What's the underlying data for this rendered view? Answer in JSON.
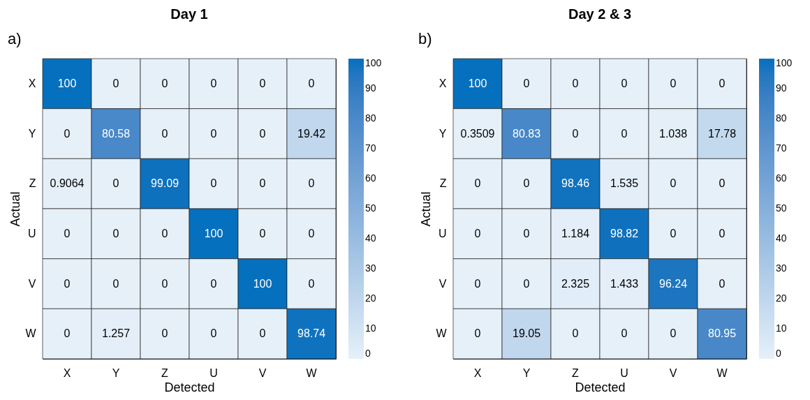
{
  "chart_data": [
    {
      "type": "heatmap",
      "title": "Day 1",
      "xlabel": "Detected",
      "ylabel": "Actual",
      "annotations": [
        "a)"
      ],
      "categories": [
        "X",
        "Y",
        "Z",
        "U",
        "V",
        "W"
      ],
      "y_categories": [
        "X",
        "Y",
        "Z",
        "U",
        "V",
        "W"
      ],
      "cells": [
        [
          100,
          0,
          0,
          0,
          0,
          0
        ],
        [
          0,
          80.58,
          0,
          0,
          0,
          19.42
        ],
        [
          0.9064,
          0,
          99.09,
          0,
          0,
          0
        ],
        [
          0,
          0,
          0,
          100,
          0,
          0
        ],
        [
          0,
          0,
          0,
          0,
          100,
          0
        ],
        [
          0,
          1.257,
          0,
          0,
          0,
          98.74
        ]
      ],
      "data_labels": true,
      "clim": [
        0,
        100
      ],
      "cticks": [
        0,
        10,
        20,
        30,
        40,
        50,
        60,
        70,
        80,
        90,
        100
      ]
    },
    {
      "type": "heatmap",
      "title": "Day 2 & 3",
      "xlabel": "Detected",
      "ylabel": "Actual",
      "annotations": [
        "b)"
      ],
      "categories": [
        "X",
        "Y",
        "Z",
        "U",
        "V",
        "W"
      ],
      "y_categories": [
        "X",
        "Y",
        "Z",
        "U",
        "V",
        "W"
      ],
      "cells": [
        [
          100,
          0,
          0,
          0,
          0,
          0
        ],
        [
          0.3509,
          80.83,
          0,
          0,
          1.038,
          17.78
        ],
        [
          0,
          0,
          98.46,
          1.535,
          0,
          0
        ],
        [
          0,
          0,
          1.184,
          98.82,
          0,
          0
        ],
        [
          0,
          0,
          2.325,
          1.433,
          96.24,
          0
        ],
        [
          0,
          19.05,
          0,
          0,
          0,
          80.95
        ]
      ],
      "data_labels": true,
      "clim": [
        0,
        100
      ],
      "cticks": [
        0,
        10,
        20,
        30,
        40,
        50,
        60,
        70,
        80,
        90,
        100
      ]
    }
  ]
}
